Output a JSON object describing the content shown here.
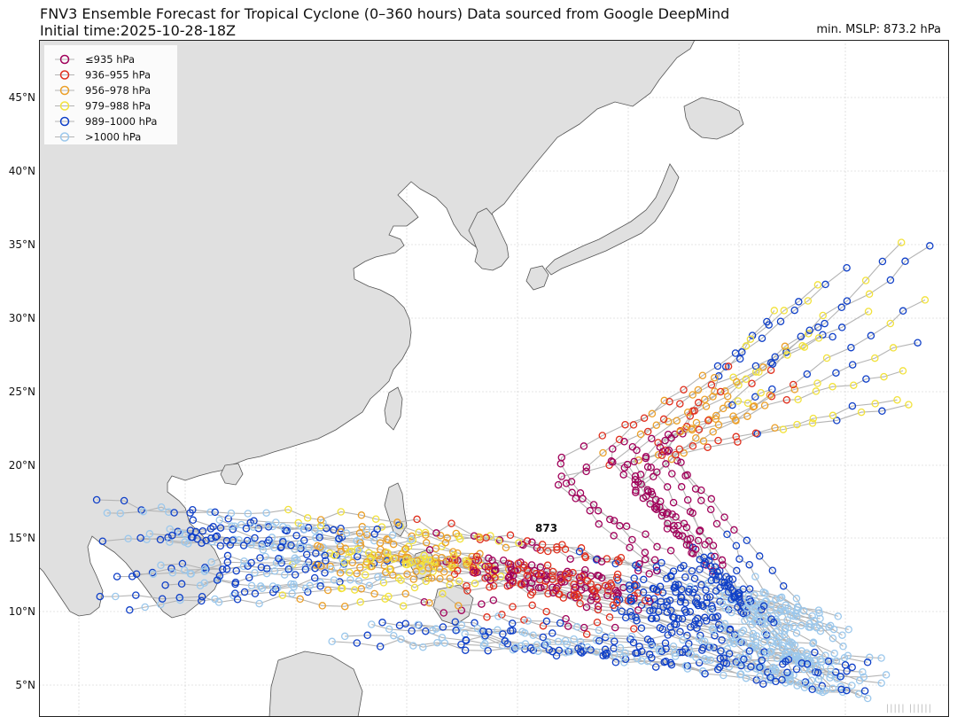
{
  "title": {
    "line1": "FNV3 Ensemble Forecast for Tropical Cyclone (0–360 hours) Data sourced from Google DeepMind",
    "line2": "Initial time:2025-10-28-18Z"
  },
  "min_mslp_text": "min. MSLP: 873.2 hPa",
  "center_label": "873",
  "latitude_labels": [
    "45°N",
    "40°N",
    "35°N",
    "30°N",
    "25°N",
    "20°N",
    "15°N",
    "10°N",
    "5°N"
  ],
  "legend": [
    {
      "label": "≤935 hPa",
      "color": "#a0005a"
    },
    {
      "label": "936–955 hPa",
      "color": "#e0301e"
    },
    {
      "label": "956–978 hPa",
      "color": "#eba02a"
    },
    {
      "label": "979–988 hPa",
      "color": "#f2e23c"
    },
    {
      "label": "989–1000 hPa",
      "color": "#1040c8"
    },
    {
      "label": ">1000 hPa",
      "color": "#9cc8ec"
    }
  ],
  "colors": {
    "land": "#e0e0e0",
    "ocean": "#ffffff",
    "coastline": "#555555",
    "grid": "#cccccc",
    "track": "#b4b4b4"
  }
}
